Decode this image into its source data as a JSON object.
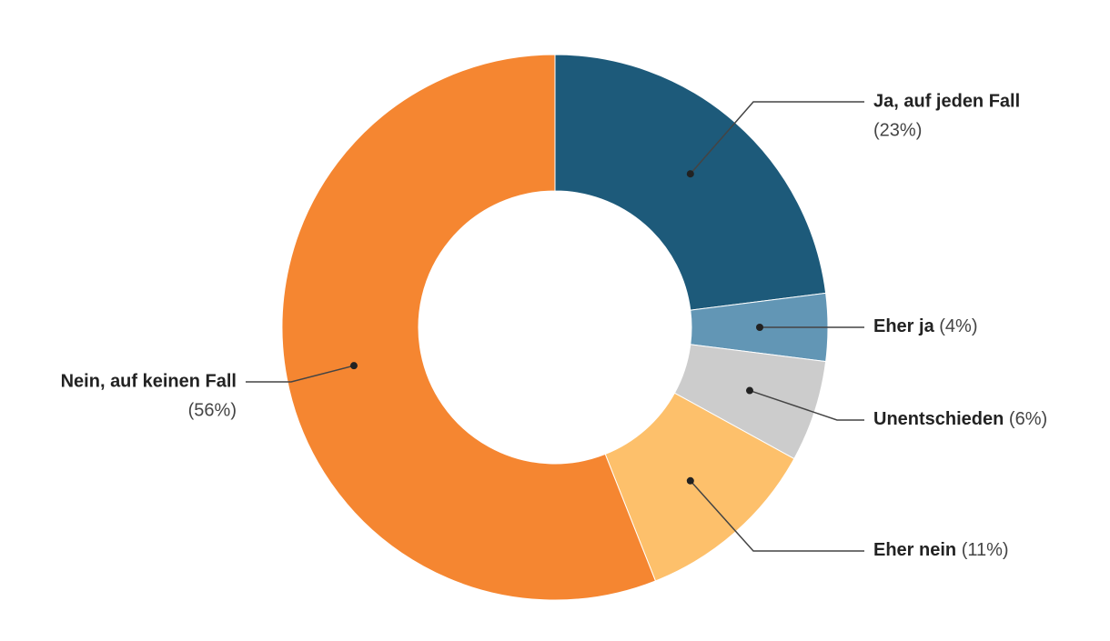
{
  "chart_data": {
    "type": "donut",
    "categories": [
      "Ja, auf jeden Fall",
      "Eher ja",
      "Unentschieden",
      "Eher nein",
      "Nein, auf keinen Fall"
    ],
    "values": [
      23,
      4,
      6,
      11,
      56
    ],
    "value_labels": [
      "(23%)",
      "(4%)",
      "(6%)",
      "(11%)",
      "(56%)"
    ],
    "colors": [
      "#1d5a7a",
      "#6296b5",
      "#cccccc",
      "#fdc06b",
      "#f58631"
    ]
  }
}
